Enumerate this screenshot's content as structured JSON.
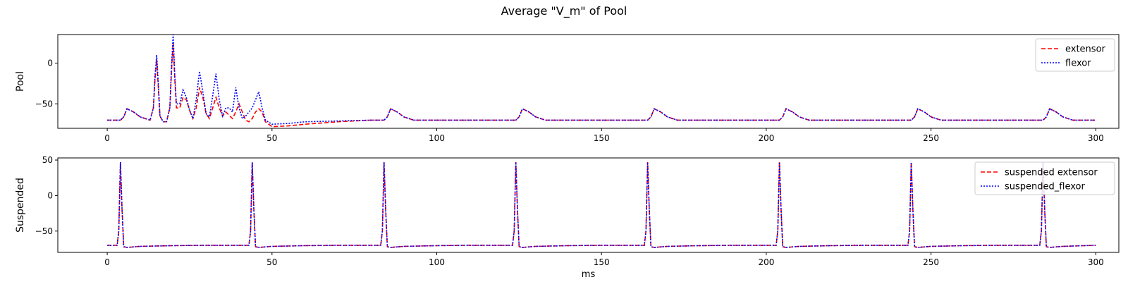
{
  "figure": {
    "title": "Average \"V_m\" of Pool"
  },
  "colors": {
    "extensor": "#ff0000",
    "flexor": "#0000ff",
    "axis": "#000000"
  },
  "chart_data": [
    {
      "type": "line",
      "ylabel": "Pool",
      "xlabel": "",
      "xlim": [
        -15,
        307
      ],
      "ylim": [
        -80,
        35
      ],
      "xticks": [
        0,
        50,
        100,
        150,
        200,
        250,
        300
      ],
      "yticks": [
        0,
        -50
      ],
      "legend": "top-right",
      "grid": false,
      "series": [
        {
          "name": "extensor",
          "style": "dashed",
          "color": "#ff0000",
          "x": [
            0,
            4,
            5,
            6,
            8,
            10,
            13,
            14,
            14.5,
            15,
            15.5,
            16,
            17,
            18,
            19,
            19.5,
            20,
            20.5,
            21,
            22,
            23,
            24,
            25,
            26,
            27,
            28,
            29,
            30,
            31,
            32,
            33,
            34,
            35,
            36,
            37,
            38,
            39,
            40,
            41,
            42,
            43,
            44,
            45,
            46,
            47,
            48,
            50,
            55,
            60,
            70,
            80,
            84,
            85,
            86,
            88,
            90,
            93,
            100,
            120,
            124,
            125,
            126,
            128,
            130,
            133,
            140,
            160,
            164,
            165,
            166,
            168,
            170,
            173,
            180,
            200,
            204,
            205,
            206,
            208,
            210,
            213,
            220,
            240,
            244,
            245,
            246,
            248,
            250,
            253,
            260,
            280,
            284,
            285,
            286,
            288,
            290,
            293,
            300
          ],
          "y": [
            -70,
            -70,
            -66,
            -56,
            -60,
            -66,
            -70,
            -55,
            -20,
            5,
            -30,
            -65,
            -72,
            -72,
            -55,
            -10,
            25,
            -20,
            -55,
            -55,
            -42,
            -45,
            -58,
            -68,
            -55,
            -30,
            -42,
            -62,
            -68,
            -55,
            -42,
            -55,
            -65,
            -60,
            -64,
            -68,
            -60,
            -50,
            -60,
            -70,
            -72,
            -68,
            -60,
            -56,
            -60,
            -72,
            -78,
            -77,
            -75,
            -72,
            -70,
            -70,
            -66,
            -56,
            -60,
            -66,
            -70,
            -70,
            -70,
            -70,
            -66,
            -56,
            -60,
            -66,
            -70,
            -70,
            -70,
            -70,
            -66,
            -56,
            -60,
            -66,
            -70,
            -70,
            -70,
            -70,
            -66,
            -56,
            -60,
            -66,
            -70,
            -70,
            -70,
            -70,
            -66,
            -56,
            -60,
            -66,
            -70,
            -70,
            -70,
            -70,
            -66,
            -56,
            -60,
            -66,
            -70,
            -70
          ]
        },
        {
          "name": "flexor",
          "style": "dotted",
          "color": "#0000ff",
          "x": [
            0,
            4,
            5,
            6,
            8,
            10,
            13,
            14,
            14.5,
            15,
            15.5,
            16,
            17,
            18,
            19,
            19.5,
            20,
            20.5,
            21,
            22,
            23,
            24,
            25,
            26,
            27,
            28,
            29,
            30,
            31,
            32,
            33,
            34,
            35,
            36,
            37,
            38,
            39,
            40,
            41,
            42,
            43,
            44,
            45,
            46,
            47,
            48,
            50,
            55,
            60,
            70,
            80,
            84,
            85,
            86,
            88,
            90,
            93,
            100,
            120,
            124,
            125,
            126,
            128,
            130,
            133,
            140,
            160,
            164,
            165,
            166,
            168,
            170,
            173,
            180,
            200,
            204,
            205,
            206,
            208,
            210,
            213,
            220,
            240,
            244,
            245,
            246,
            248,
            250,
            253,
            260,
            280,
            284,
            285,
            286,
            288,
            290,
            293,
            300
          ],
          "y": [
            -70,
            -70,
            -66,
            -56,
            -60,
            -66,
            -70,
            -55,
            -15,
            10,
            -25,
            -65,
            -72,
            -72,
            -55,
            -5,
            35,
            -15,
            -50,
            -50,
            -33,
            -42,
            -58,
            -68,
            -45,
            -10,
            -35,
            -62,
            -66,
            -40,
            -13,
            -45,
            -65,
            -55,
            -55,
            -60,
            -30,
            -55,
            -68,
            -65,
            -60,
            -55,
            -45,
            -35,
            -55,
            -70,
            -75,
            -74,
            -72,
            -71,
            -70,
            -70,
            -66,
            -56,
            -60,
            -66,
            -70,
            -70,
            -70,
            -70,
            -66,
            -56,
            -60,
            -66,
            -70,
            -70,
            -70,
            -70,
            -66,
            -56,
            -60,
            -66,
            -70,
            -70,
            -70,
            -70,
            -66,
            -56,
            -60,
            -66,
            -70,
            -70,
            -70,
            -70,
            -66,
            -56,
            -60,
            -66,
            -70,
            -70,
            -70,
            -70,
            -66,
            -56,
            -60,
            -66,
            -70,
            -70
          ]
        }
      ]
    },
    {
      "type": "line",
      "ylabel": "Suspended",
      "xlabel": "ms",
      "xlim": [
        -15,
        307
      ],
      "ylim": [
        -80,
        53
      ],
      "xticks": [
        0,
        50,
        100,
        150,
        200,
        250,
        300
      ],
      "yticks": [
        50,
        0,
        -50
      ],
      "legend": "top-right",
      "grid": false,
      "series": [
        {
          "name": "suspended extensor",
          "style": "dashed",
          "color": "#ff0000",
          "x": [
            0,
            3,
            3.5,
            4,
            4.5,
            5,
            6,
            10,
            20,
            30,
            42,
            43,
            43.5,
            44,
            44.5,
            45,
            46,
            50,
            60,
            70,
            82,
            83,
            83.5,
            84,
            84.5,
            85,
            86,
            90,
            100,
            110,
            122,
            123,
            123.5,
            124,
            124.5,
            125,
            126,
            130,
            140,
            150,
            162,
            163,
            163.5,
            164,
            164.5,
            165,
            166,
            170,
            180,
            190,
            202,
            203,
            203.5,
            204,
            204.5,
            205,
            206,
            210,
            220,
            230,
            242,
            243,
            243.5,
            244,
            244.5,
            245,
            246,
            250,
            260,
            270,
            282,
            283,
            283.5,
            284,
            284.5,
            285,
            286,
            290,
            300
          ],
          "y": [
            -70,
            -70,
            -50,
            47,
            -20,
            -72,
            -73,
            -71.5,
            -70.5,
            -70,
            -70,
            -70,
            -50,
            47,
            -20,
            -72,
            -73,
            -71.5,
            -70.5,
            -70,
            -70,
            -70,
            -50,
            47,
            -20,
            -72,
            -73,
            -71.5,
            -70.5,
            -70,
            -70,
            -70,
            -50,
            47,
            -20,
            -72,
            -73,
            -71.5,
            -70.5,
            -70,
            -70,
            -70,
            -50,
            47,
            -20,
            -72,
            -73,
            -71.5,
            -70.5,
            -70,
            -70,
            -70,
            -50,
            47,
            -20,
            -72,
            -73,
            -71.5,
            -70.5,
            -70,
            -70,
            -70,
            -50,
            47,
            -20,
            -72,
            -73,
            -71.5,
            -70.5,
            -70,
            -70,
            -70,
            -50,
            47,
            -20,
            -72,
            -73,
            -71.5,
            -70
          ]
        },
        {
          "name": "suspended_flexor",
          "style": "dotted",
          "color": "#0000ff",
          "x": [
            0,
            3,
            3.5,
            4,
            4.5,
            5,
            6,
            10,
            20,
            30,
            42,
            43,
            43.5,
            44,
            44.5,
            45,
            46,
            50,
            60,
            70,
            82,
            83,
            83.5,
            84,
            84.5,
            85,
            86,
            90,
            100,
            110,
            122,
            123,
            123.5,
            124,
            124.5,
            125,
            126,
            130,
            140,
            150,
            162,
            163,
            163.5,
            164,
            164.5,
            165,
            166,
            170,
            180,
            190,
            202,
            203,
            203.5,
            204,
            204.5,
            205,
            206,
            210,
            220,
            230,
            242,
            243,
            243.5,
            244,
            244.5,
            245,
            246,
            250,
            260,
            270,
            282,
            283,
            283.5,
            284,
            284.5,
            285,
            286,
            290,
            300
          ],
          "y": [
            -70,
            -70,
            -50,
            47,
            -20,
            -72,
            -73,
            -71.5,
            -70.5,
            -70,
            -70,
            -70,
            -50,
            47,
            -20,
            -72,
            -73,
            -71.5,
            -70.5,
            -70,
            -70,
            -70,
            -50,
            47,
            -20,
            -72,
            -73,
            -71.5,
            -70.5,
            -70,
            -70,
            -70,
            -50,
            47,
            -20,
            -72,
            -73,
            -71.5,
            -70.5,
            -70,
            -70,
            -70,
            -50,
            47,
            -20,
            -72,
            -73,
            -71.5,
            -70.5,
            -70,
            -70,
            -70,
            -50,
            47,
            -20,
            -72,
            -73,
            -71.5,
            -70.5,
            -70,
            -70,
            -70,
            -50,
            47,
            -20,
            -72,
            -73,
            -71.5,
            -70.5,
            -70,
            -70,
            -70,
            -50,
            47,
            -20,
            -72,
            -73,
            -71.5,
            -70
          ]
        }
      ]
    }
  ]
}
